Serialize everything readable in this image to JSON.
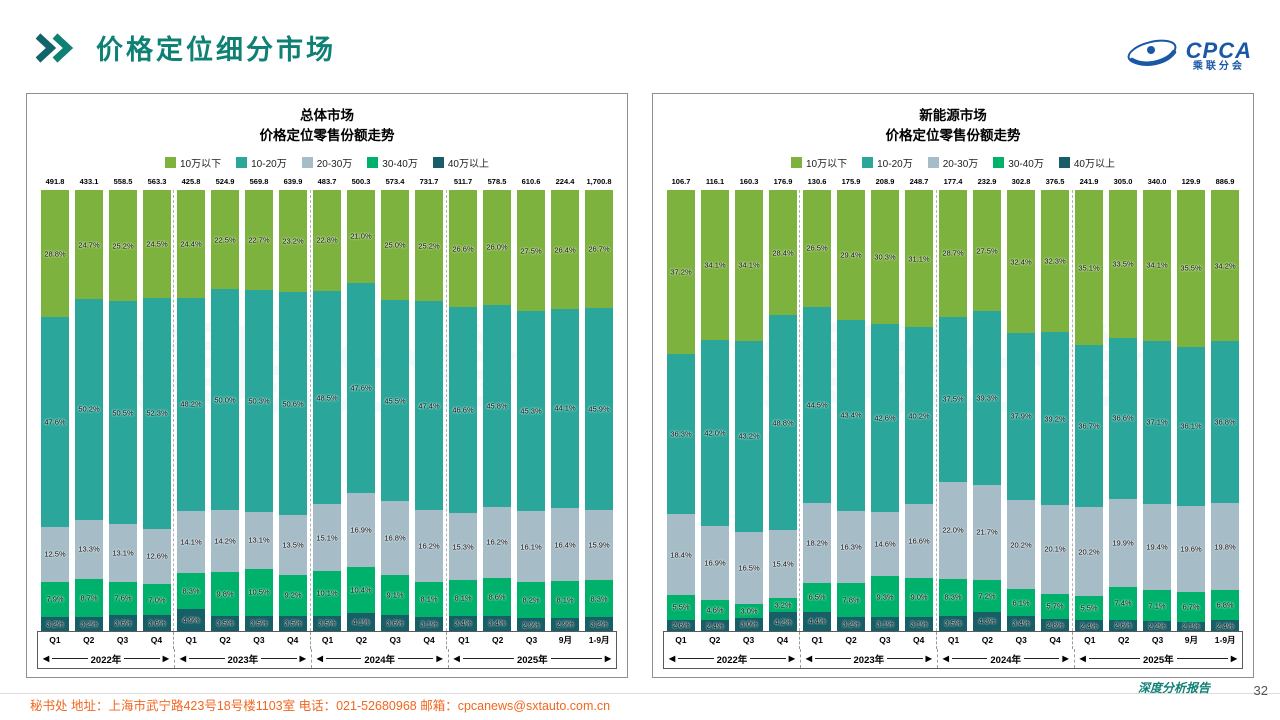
{
  "watermark": "乘联分会",
  "header": {
    "title": "价格定位细分市场",
    "logo_text": "CPCA",
    "logo_subtext": "乘联分会"
  },
  "legend": [
    "10万以下",
    "10-20万",
    "20-30万",
    "30-40万",
    "40万以上"
  ],
  "series_colors": [
    "#7db23e",
    "#2aa79a",
    "#a6bcc7",
    "#00b16b",
    "#175e66"
  ],
  "chart_data": [
    {
      "type": "bar",
      "subtype": "stacked-100-percent",
      "title_line1": "总体市场",
      "title_line2": "价格定位零售份额走势",
      "ylim": [
        0,
        100
      ],
      "value_unit": "%",
      "categories": [
        "Q1",
        "Q2",
        "Q3",
        "Q4",
        "Q1",
        "Q2",
        "Q3",
        "Q4",
        "Q1",
        "Q2",
        "Q3",
        "Q4",
        "Q1",
        "Q2",
        "Q3",
        "9月",
        "1-9月"
      ],
      "year_groups": [
        {
          "label": "2022年",
          "span": 4
        },
        {
          "label": "2023年",
          "span": 4
        },
        {
          "label": "2024年",
          "span": 4
        },
        {
          "label": "2025年",
          "span": 5
        }
      ],
      "totals": [
        "491.8",
        "433.1",
        "558.5",
        "563.3",
        "425.8",
        "524.9",
        "569.8",
        "639.9",
        "483.7",
        "500.3",
        "573.4",
        "731.7",
        "511.7",
        "578.5",
        "610.6",
        "224.4",
        "1,700.8"
      ],
      "series": [
        {
          "name": "10万以下",
          "values": [
            28.8,
            24.7,
            25.2,
            24.5,
            24.4,
            22.5,
            22.7,
            23.2,
            22.8,
            21.0,
            25.0,
            25.2,
            26.6,
            26.0,
            27.5,
            26.4,
            26.7
          ]
        },
        {
          "name": "10-20万",
          "values": [
            47.6,
            50.2,
            50.5,
            52.3,
            48.2,
            50.0,
            50.3,
            50.6,
            48.5,
            47.6,
            45.5,
            47.4,
            46.6,
            45.8,
            45.3,
            44.1,
            45.9
          ]
        },
        {
          "name": "20-30万",
          "values": [
            12.5,
            13.3,
            13.1,
            12.6,
            14.1,
            14.2,
            13.1,
            13.5,
            15.1,
            16.9,
            16.8,
            16.2,
            15.3,
            16.2,
            16.1,
            16.4,
            15.9
          ]
        },
        {
          "name": "30-40万",
          "values": [
            7.9,
            8.7,
            7.6,
            7.0,
            8.3,
            9.8,
            10.5,
            9.2,
            10.1,
            10.4,
            9.1,
            8.1,
            8.1,
            8.6,
            8.2,
            8.1,
            8.3
          ]
        },
        {
          "name": "40万以上",
          "values": [
            3.2,
            3.2,
            3.6,
            3.6,
            4.9,
            3.5,
            3.5,
            3.5,
            3.5,
            4.1,
            3.6,
            3.1,
            3.4,
            3.4,
            2.9,
            2.9,
            3.2
          ]
        }
      ]
    },
    {
      "type": "bar",
      "subtype": "stacked-100-percent",
      "title_line1": "新能源市场",
      "title_line2": "价格定位零售份额走势",
      "ylim": [
        0,
        100
      ],
      "value_unit": "%",
      "categories": [
        "Q1",
        "Q2",
        "Q3",
        "Q4",
        "Q1",
        "Q2",
        "Q3",
        "Q4",
        "Q1",
        "Q2",
        "Q3",
        "Q4",
        "Q1",
        "Q2",
        "Q3",
        "9月",
        "1-9月"
      ],
      "year_groups": [
        {
          "label": "2022年",
          "span": 4
        },
        {
          "label": "2023年",
          "span": 4
        },
        {
          "label": "2024年",
          "span": 4
        },
        {
          "label": "2025年",
          "span": 5
        }
      ],
      "totals": [
        "106.7",
        "116.1",
        "160.3",
        "176.9",
        "130.6",
        "175.9",
        "208.9",
        "248.7",
        "177.4",
        "232.9",
        "302.8",
        "376.5",
        "241.9",
        "305.0",
        "340.0",
        "129.9",
        "886.9"
      ],
      "series": [
        {
          "name": "10万以下",
          "values": [
            37.2,
            34.1,
            34.1,
            28.4,
            26.5,
            29.4,
            30.3,
            31.1,
            28.7,
            27.5,
            32.4,
            32.3,
            35.1,
            33.5,
            34.1,
            35.5,
            34.2
          ]
        },
        {
          "name": "10-20万",
          "values": [
            36.3,
            42.0,
            43.2,
            48.8,
            44.5,
            43.4,
            42.6,
            40.2,
            37.5,
            39.3,
            37.9,
            39.2,
            36.7,
            36.6,
            37.1,
            36.1,
            36.8
          ]
        },
        {
          "name": "20-30万",
          "values": [
            18.4,
            16.9,
            16.5,
            15.4,
            18.2,
            16.3,
            14.6,
            16.6,
            22.0,
            21.7,
            20.2,
            20.1,
            20.2,
            19.9,
            19.4,
            19.6,
            19.8
          ]
        },
        {
          "name": "30-40万",
          "values": [
            5.5,
            4.6,
            3.0,
            3.2,
            6.5,
            7.8,
            9.3,
            9.0,
            8.3,
            7.2,
            6.1,
            5.7,
            5.5,
            7.4,
            7.1,
            6.7,
            6.8
          ]
        },
        {
          "name": "40万以上",
          "values": [
            2.6,
            2.4,
            3.0,
            4.2,
            4.4,
            3.2,
            3.1,
            3.1,
            3.5,
            4.3,
            3.4,
            2.8,
            2.4,
            2.6,
            2.2,
            2.1,
            2.4
          ]
        }
      ]
    }
  ],
  "footer": {
    "left": "秘书处  地址：上海市武宁路423号18号楼1103室  电话：021-52680968  邮箱：cpcanews@sxtauto.com.cn",
    "report_label": "深度分析报告",
    "page": "32"
  }
}
